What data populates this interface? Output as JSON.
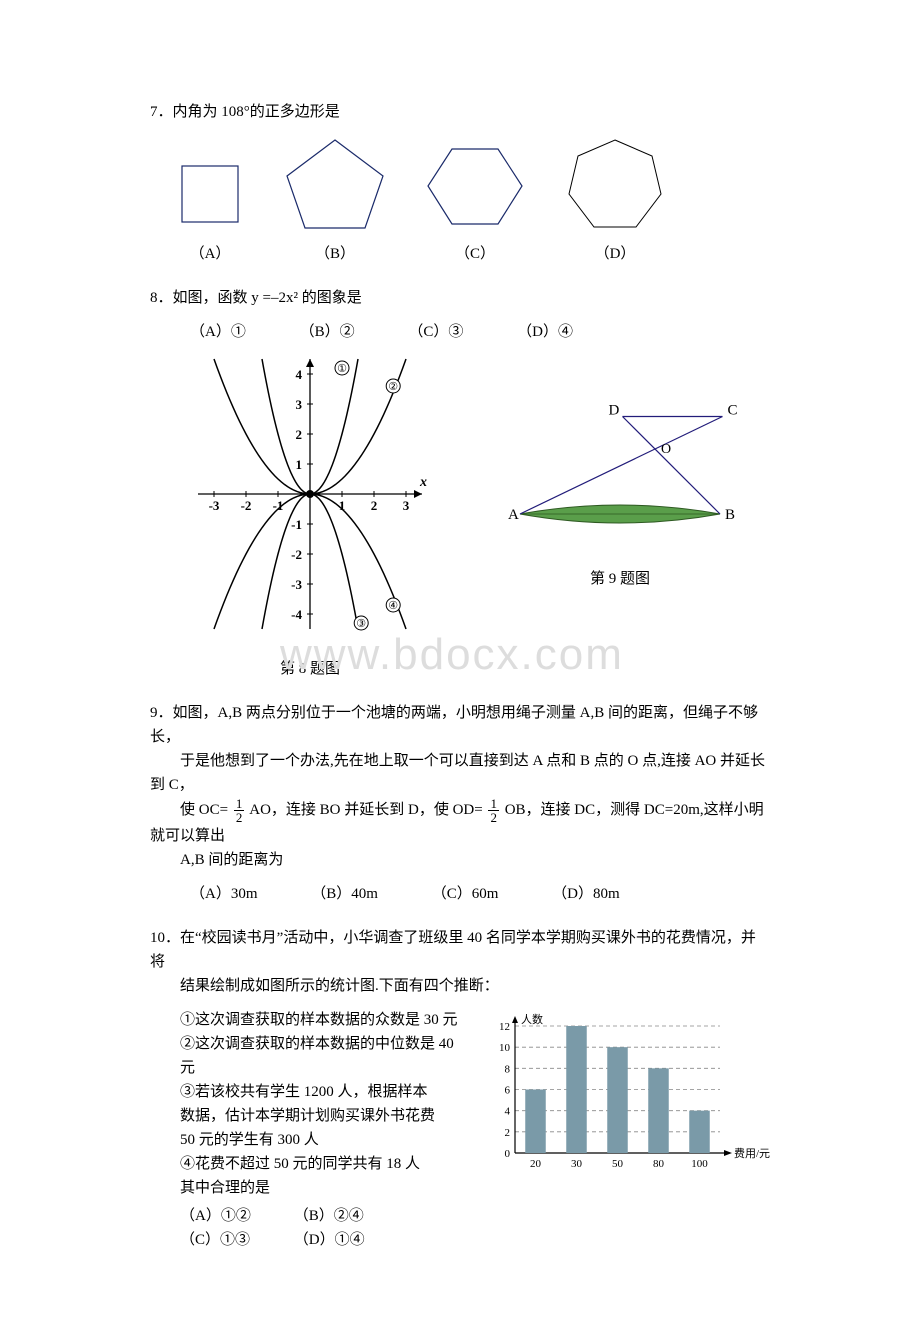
{
  "watermark_text": "www.bdocx.com",
  "q7": {
    "number": "7．",
    "text": "内角为 108°的正多边形是",
    "options": {
      "A": "（A）",
      "B": "（B）",
      "C": "（C）",
      "D": "（D）"
    },
    "polygons": {
      "square": {
        "stroke": "#1a2a6a",
        "fill": "none"
      },
      "pentagon": {
        "stroke": "#1a2a6a",
        "fill": "none"
      },
      "hexagon": {
        "stroke": "#1a2a6a",
        "fill": "none"
      },
      "heptagon": {
        "stroke": "#000000",
        "fill": "none"
      }
    }
  },
  "q8": {
    "number": "8．",
    "text": "如图，函数 y =–2x² 的图象是",
    "options": {
      "A": "（A）①",
      "B": "（B）②",
      "C": "（C）③",
      "D": "（D）④"
    },
    "graph": {
      "xlim": [
        -3.5,
        3.5
      ],
      "ylim": [
        -4.5,
        4.5
      ],
      "xticks": [
        -3,
        -2,
        -1,
        1,
        2,
        3
      ],
      "yticks": [
        -4,
        -3,
        -2,
        -1,
        1,
        2,
        3,
        4
      ],
      "xlabel": "x",
      "curve_color": "#000000",
      "curves": [
        {
          "label": "①",
          "a": 2,
          "dir": 1
        },
        {
          "label": "②",
          "a": 0.5,
          "dir": 1
        },
        {
          "label": "③",
          "a": 2,
          "dir": -1
        },
        {
          "label": "④",
          "a": 0.5,
          "dir": -1
        }
      ]
    },
    "caption": "第 8 题图"
  },
  "q9": {
    "number": "9．",
    "text_line1": "如图，A,B 两点分别位于一个池塘的两端，小明想用绳子测量 A,B 间的距离，但绳子不够长，",
    "text_line2": "于是他想到了一个办法,先在地上取一个可以直接到达 A 点和 B 点的 O 点,连接 AO 并延长到 C，",
    "text_line3_a": "使 OC=",
    "text_line3_b": "AO，连接 BO 并延长到 D，使 OD=",
    "text_line3_c": "OB，连接 DC，测得 DC=20m,这样小明就可以算出",
    "frac": {
      "num": "1",
      "den": "2"
    },
    "text_line4": "A,B 间的距离为",
    "options": {
      "A": "（A）30m",
      "B": "（B）40m",
      "C": "（C）60m",
      "D": "（D）80m"
    },
    "fig": {
      "labels": {
        "A": "A",
        "B": "B",
        "C": "C",
        "D": "D",
        "O": "O"
      },
      "pond_fill": "#5a9e4a",
      "pond_stroke": "#2e5a22",
      "line_color": "#221c7a"
    },
    "caption": "第 9 题图"
  },
  "q10": {
    "number": "10．",
    "text_line1": "在“校园读书月”活动中，小华调查了班级里 40 名同学本学期购买课外书的花费情况，并将",
    "text_line2": "结果绘制成如图所示的统计图.下面有四个推断：",
    "bullets": [
      "①这次调查获取的样本数据的众数是 30 元",
      "②这次调查获取的样本数据的中位数是 40 元",
      "③若该校共有学生 1200 人，根据样本",
      "数据，估计本学期计划购买课外书花费",
      "50 元的学生有 300 人",
      "④花费不超过 50 元的同学共有 18 人",
      "其中合理的是"
    ],
    "options": {
      "A": "（A）①②",
      "B": "（B）②④",
      "C": "（C）①③",
      "D": "（D）①④"
    },
    "chart": {
      "type": "bar",
      "ylabel": "人数",
      "xlabel": "费用/元",
      "categories": [
        "20",
        "30",
        "50",
        "80",
        "100"
      ],
      "values": [
        6,
        12,
        10,
        8,
        4
      ],
      "ylim": [
        0,
        12
      ],
      "ytick_step": 2,
      "bar_color": "#7a9aa8",
      "grid_color": "#888888",
      "axis_color": "#000000",
      "label_fontsize": 11
    }
  }
}
